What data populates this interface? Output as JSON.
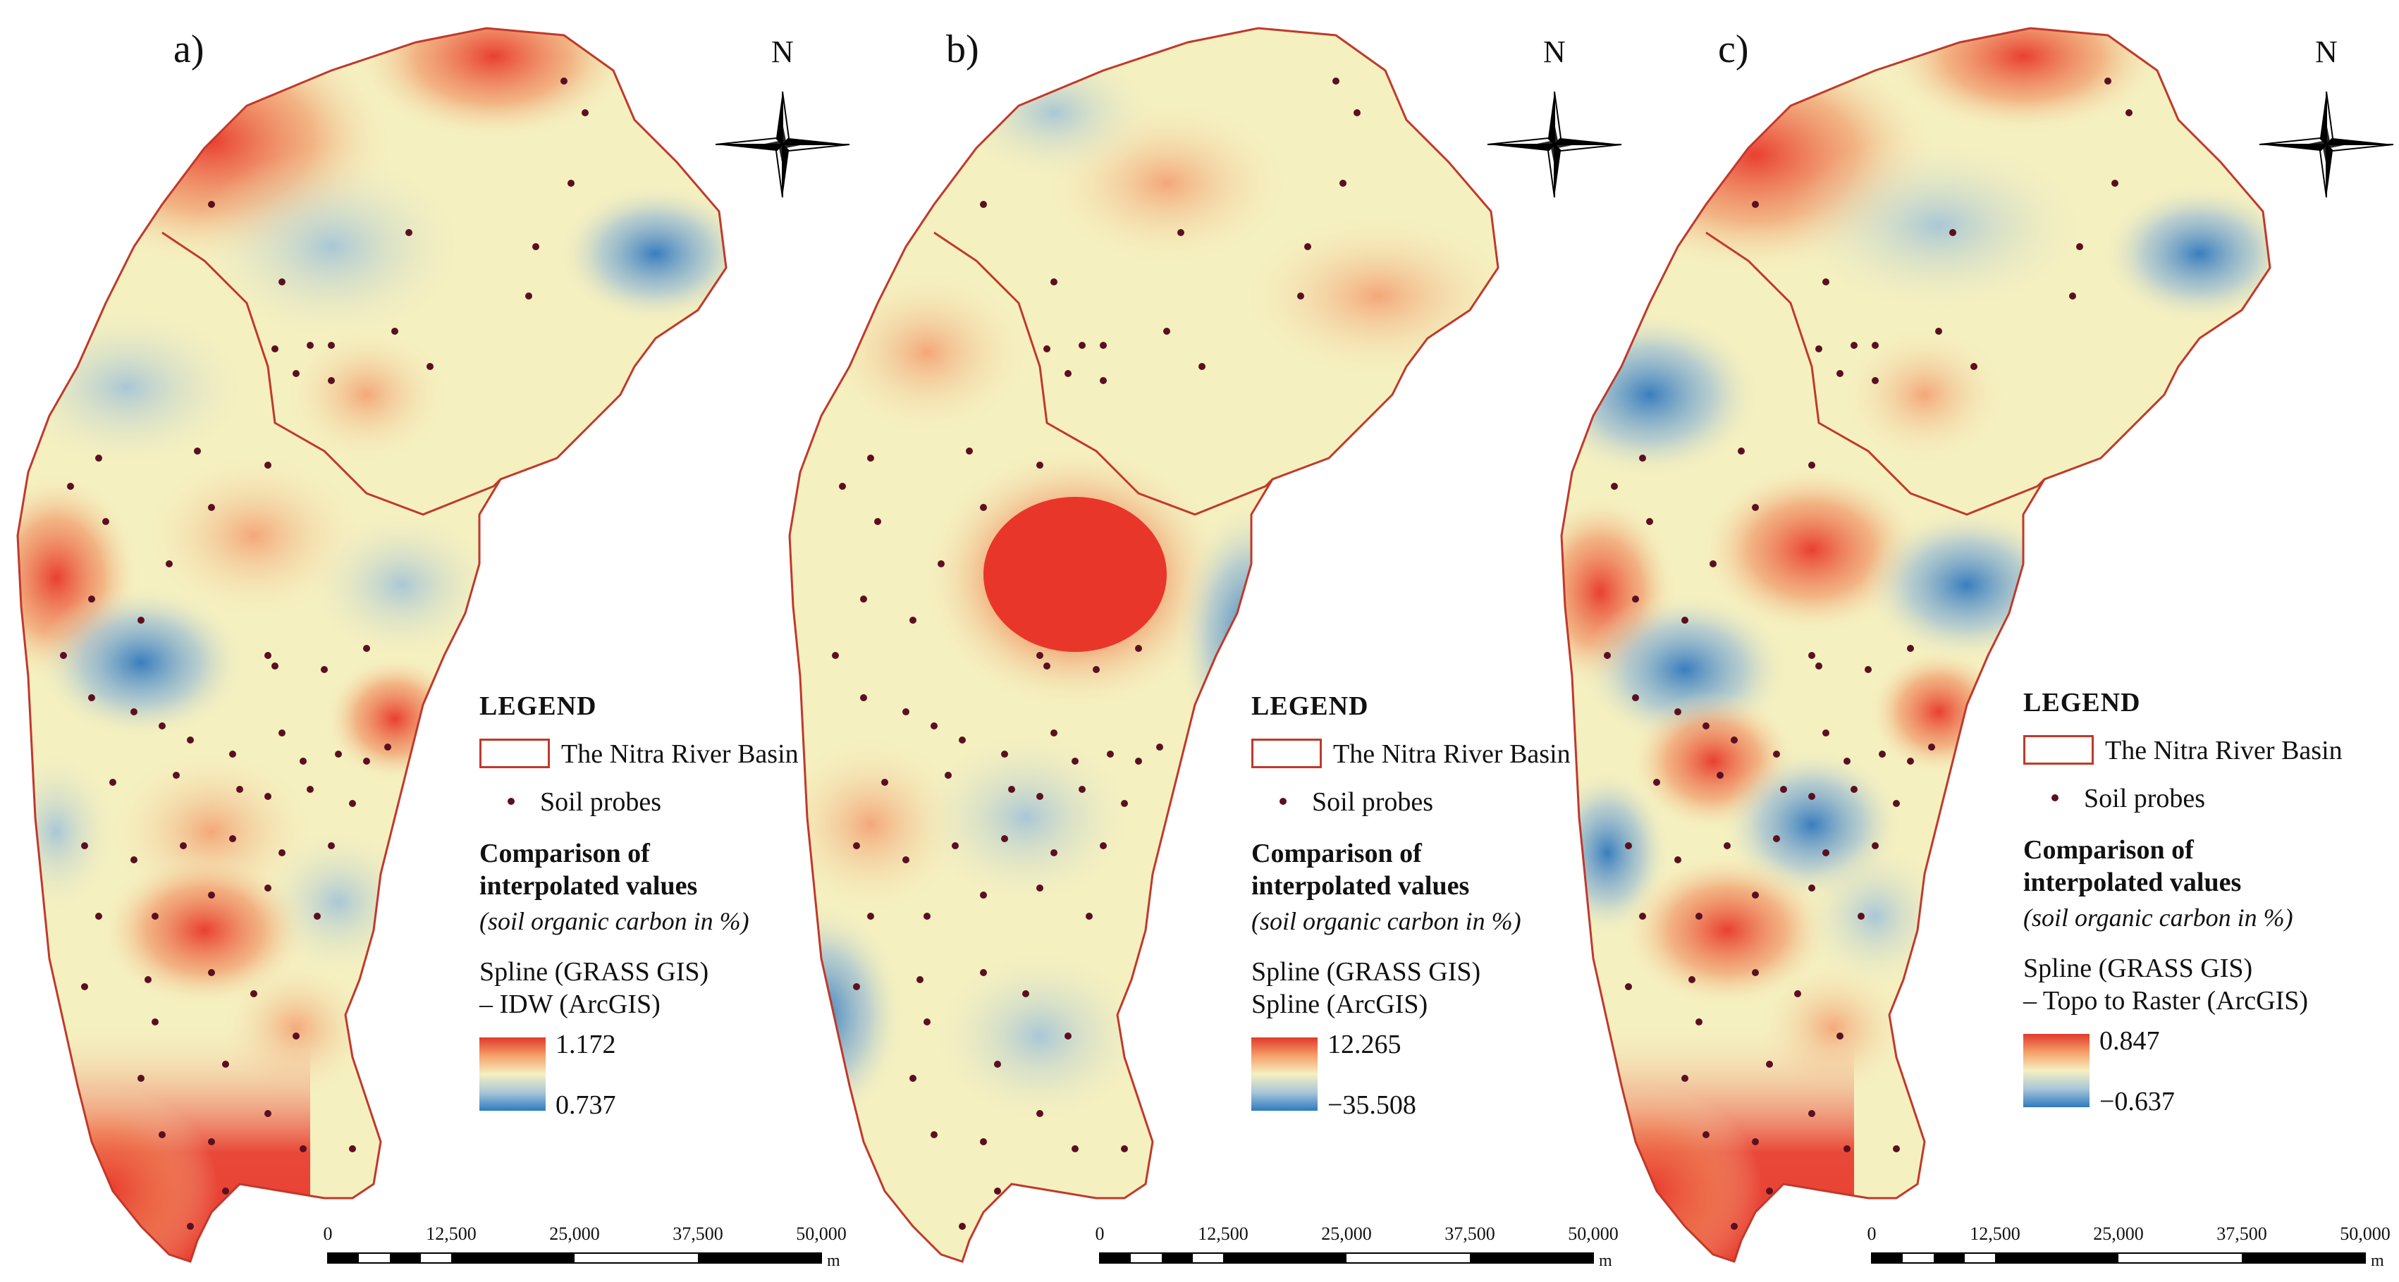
{
  "panels": [
    {
      "label": "a)",
      "north": "N",
      "legend": {
        "title": "LEGEND",
        "basin_label": "The Nitra River Basin",
        "probes_label": "Soil probes",
        "comparison_title_1": "Comparison of",
        "comparison_title_2": "interpolated values",
        "comparison_subtitle": "(soil organic carbon in %)",
        "method_line1": "Spline (GRASS GIS)",
        "method_line2": "– IDW (ArcGIS)",
        "max": "1.172",
        "min": "0.737"
      },
      "scale": {
        "ticks": [
          "0",
          "12,500",
          "25,000",
          "37,500",
          "50,000"
        ],
        "unit": "m"
      }
    },
    {
      "label": "b)",
      "north": "N",
      "legend": {
        "title": "LEGEND",
        "basin_label": "The Nitra River Basin",
        "probes_label": "Soil probes",
        "comparison_title_1": "Comparison of",
        "comparison_title_2": "interpolated values",
        "comparison_subtitle": "(soil organic carbon in %)",
        "method_line1": "Spline (GRASS GIS)",
        "method_line2": "Spline (ArcGIS)",
        "max": "12.265",
        "min": "−35.508"
      },
      "scale": {
        "ticks": [
          "0",
          "12,500",
          "25,000",
          "37,500",
          "50,000"
        ],
        "unit": "m"
      }
    },
    {
      "label": "c)",
      "north": "N",
      "legend": {
        "title": "LEGEND",
        "basin_label": "The Nitra River Basin",
        "probes_label": "Soil probes",
        "comparison_title_1": "Comparison of",
        "comparison_title_2": "interpolated values",
        "comparison_subtitle": "(soil organic carbon in %)",
        "method_line1": "Spline (GRASS GIS)",
        "method_line2": "– Topo to Raster (ArcGIS)",
        "max": "0.847",
        "min": "−0.637"
      },
      "scale": {
        "ticks": [
          "0",
          "12,500",
          "25,000",
          "37,500",
          "50,000"
        ],
        "unit": "m"
      }
    }
  ],
  "colors": {
    "high": "#e0392b",
    "mid": "#f5f0c0",
    "low": "#2f7bbf",
    "boundary": "#c0392b",
    "probe": "#5a1020"
  }
}
